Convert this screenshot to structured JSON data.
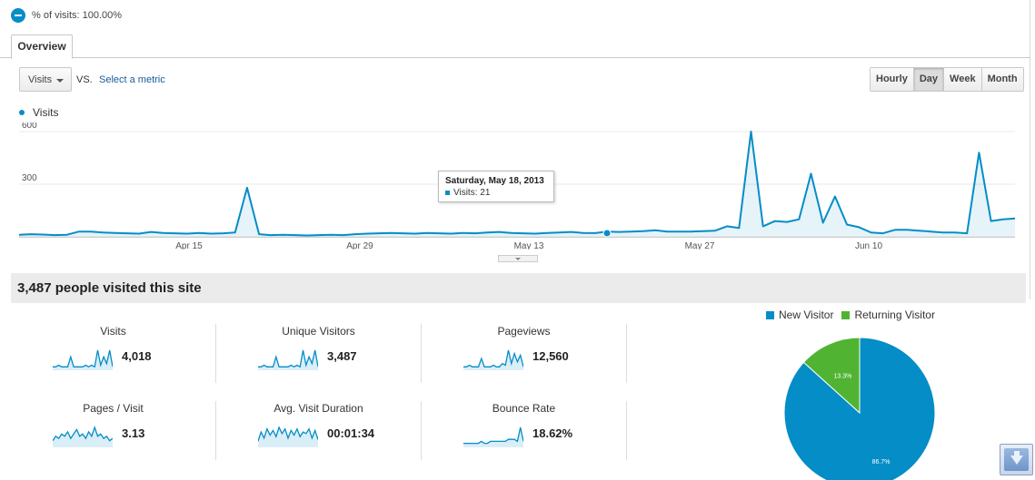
{
  "segment": {
    "label": "% of visits: 100.00%",
    "icon": "minus-circle-icon"
  },
  "tabs": [
    {
      "label": "Overview",
      "active": true
    }
  ],
  "toolbar": {
    "metric_select": "Visits",
    "vs_label": "VS.",
    "select_metric_link": "Select a metric",
    "ranges": [
      {
        "label": "Hourly",
        "active": false
      },
      {
        "label": "Day",
        "active": true
      },
      {
        "label": "Week",
        "active": false
      },
      {
        "label": "Month",
        "active": false
      }
    ]
  },
  "chart_data": {
    "type": "area",
    "series": [
      {
        "name": "Visits",
        "color": "#058dc7"
      }
    ],
    "x_ticks": [
      "Apr 15",
      "Apr 29",
      "May 13",
      "May 27",
      "Jun 10"
    ],
    "y_ticks": [
      "600",
      "300"
    ],
    "ylim": [
      0,
      600
    ],
    "values": [
      12,
      15,
      13,
      10,
      12,
      30,
      30,
      25,
      22,
      20,
      18,
      28,
      22,
      20,
      18,
      22,
      18,
      20,
      25,
      280,
      15,
      10,
      12,
      10,
      8,
      10,
      12,
      10,
      15,
      18,
      20,
      22,
      20,
      18,
      22,
      20,
      18,
      22,
      20,
      25,
      28,
      22,
      20,
      18,
      22,
      25,
      28,
      22,
      21,
      30,
      28,
      30,
      32,
      38,
      30,
      30,
      30,
      32,
      35,
      60,
      50,
      600,
      60,
      90,
      85,
      100,
      360,
      80,
      230,
      70,
      55,
      25,
      20,
      40,
      40,
      35,
      30,
      25,
      25,
      20,
      480,
      90,
      100,
      105
    ],
    "highlight": {
      "date": "Saturday, May 18, 2013",
      "metric_label": "Visits: 21",
      "value": 21
    }
  },
  "tooltip": {
    "date": "Saturday, May 18, 2013",
    "line": "Visits: 21"
  },
  "summary": {
    "title": "3,487 people visited this site"
  },
  "kpis": [
    {
      "label": "Visits",
      "value": "4,018",
      "spark": [
        2,
        2,
        3,
        2,
        2,
        2,
        8,
        2,
        2,
        2,
        2,
        3,
        2,
        3,
        2,
        12,
        3,
        8,
        4,
        12,
        2
      ]
    },
    {
      "label": "Unique Visitors",
      "value": "3,487",
      "spark": [
        2,
        2,
        3,
        2,
        2,
        2,
        8,
        2,
        2,
        2,
        2,
        3,
        2,
        3,
        2,
        12,
        3,
        8,
        4,
        12,
        2
      ]
    },
    {
      "label": "Pageviews",
      "value": "12,560",
      "spark": [
        2,
        2,
        3,
        2,
        2,
        2,
        7,
        2,
        2,
        2,
        3,
        2,
        2,
        4,
        3,
        12,
        4,
        10,
        5,
        9,
        2
      ]
    },
    {
      "label": "Pages / Visit",
      "value": "3.13",
      "spark": [
        3,
        5,
        4,
        6,
        5,
        7,
        4,
        6,
        8,
        5,
        6,
        4,
        7,
        5,
        9,
        5,
        6,
        4,
        5,
        3,
        4
      ]
    },
    {
      "label": "Avg. Visit Duration",
      "value": "00:01:34",
      "spark": [
        4,
        10,
        6,
        12,
        8,
        11,
        7,
        13,
        9,
        12,
        6,
        11,
        8,
        12,
        7,
        10,
        9,
        12,
        6,
        11,
        5
      ]
    },
    {
      "label": "Bounce Rate",
      "value": "18.62%",
      "spark": [
        2,
        2,
        2,
        2,
        2,
        2,
        3,
        2,
        2,
        3,
        3,
        3,
        3,
        3,
        3,
        4,
        4,
        4,
        3,
        10,
        3
      ]
    }
  ],
  "pie": {
    "legend": [
      {
        "label": "New Visitor",
        "color": "#058dc7"
      },
      {
        "label": "Returning Visitor",
        "color": "#50b432"
      }
    ],
    "slices": [
      {
        "label": "86.7%",
        "value": 86.7,
        "color": "#058dc7"
      },
      {
        "label": "13.3%",
        "value": 13.3,
        "color": "#50b432"
      }
    ]
  }
}
